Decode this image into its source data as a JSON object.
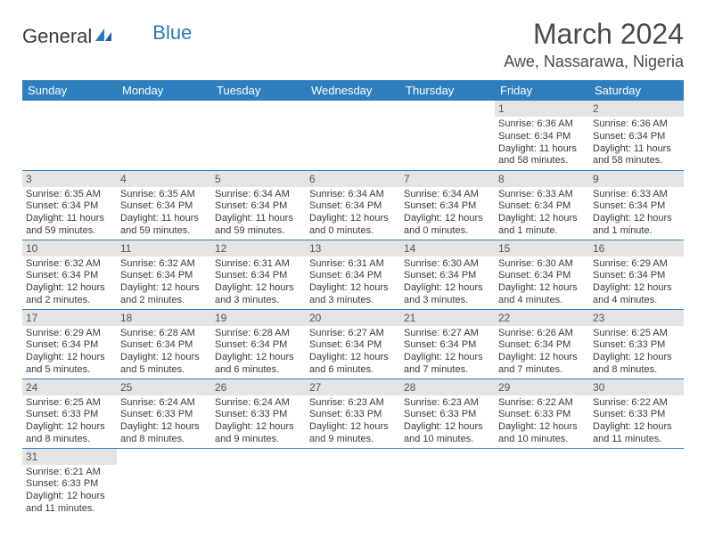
{
  "logo": {
    "part1": "General",
    "part2": "Blue"
  },
  "title": "March 2024",
  "location": "Awe, Nassarawa, Nigeria",
  "colors": {
    "header_bg": "#2f7fbf",
    "header_fg": "#ffffff",
    "daynum_bg": "#e4e4e4",
    "border": "#2f7fbf",
    "text": "#3a3a3a"
  },
  "weekdays": [
    "Sunday",
    "Monday",
    "Tuesday",
    "Wednesday",
    "Thursday",
    "Friday",
    "Saturday"
  ],
  "weeks": [
    [
      {
        "n": "",
        "lines": []
      },
      {
        "n": "",
        "lines": []
      },
      {
        "n": "",
        "lines": []
      },
      {
        "n": "",
        "lines": []
      },
      {
        "n": "",
        "lines": []
      },
      {
        "n": "1",
        "lines": [
          "Sunrise: 6:36 AM",
          "Sunset: 6:34 PM",
          "Daylight: 11 hours",
          "and 58 minutes."
        ]
      },
      {
        "n": "2",
        "lines": [
          "Sunrise: 6:36 AM",
          "Sunset: 6:34 PM",
          "Daylight: 11 hours",
          "and 58 minutes."
        ]
      }
    ],
    [
      {
        "n": "3",
        "lines": [
          "Sunrise: 6:35 AM",
          "Sunset: 6:34 PM",
          "Daylight: 11 hours",
          "and 59 minutes."
        ]
      },
      {
        "n": "4",
        "lines": [
          "Sunrise: 6:35 AM",
          "Sunset: 6:34 PM",
          "Daylight: 11 hours",
          "and 59 minutes."
        ]
      },
      {
        "n": "5",
        "lines": [
          "Sunrise: 6:34 AM",
          "Sunset: 6:34 PM",
          "Daylight: 11 hours",
          "and 59 minutes."
        ]
      },
      {
        "n": "6",
        "lines": [
          "Sunrise: 6:34 AM",
          "Sunset: 6:34 PM",
          "Daylight: 12 hours",
          "and 0 minutes."
        ]
      },
      {
        "n": "7",
        "lines": [
          "Sunrise: 6:34 AM",
          "Sunset: 6:34 PM",
          "Daylight: 12 hours",
          "and 0 minutes."
        ]
      },
      {
        "n": "8",
        "lines": [
          "Sunrise: 6:33 AM",
          "Sunset: 6:34 PM",
          "Daylight: 12 hours",
          "and 1 minute."
        ]
      },
      {
        "n": "9",
        "lines": [
          "Sunrise: 6:33 AM",
          "Sunset: 6:34 PM",
          "Daylight: 12 hours",
          "and 1 minute."
        ]
      }
    ],
    [
      {
        "n": "10",
        "lines": [
          "Sunrise: 6:32 AM",
          "Sunset: 6:34 PM",
          "Daylight: 12 hours",
          "and 2 minutes."
        ]
      },
      {
        "n": "11",
        "lines": [
          "Sunrise: 6:32 AM",
          "Sunset: 6:34 PM",
          "Daylight: 12 hours",
          "and 2 minutes."
        ]
      },
      {
        "n": "12",
        "lines": [
          "Sunrise: 6:31 AM",
          "Sunset: 6:34 PM",
          "Daylight: 12 hours",
          "and 3 minutes."
        ]
      },
      {
        "n": "13",
        "lines": [
          "Sunrise: 6:31 AM",
          "Sunset: 6:34 PM",
          "Daylight: 12 hours",
          "and 3 minutes."
        ]
      },
      {
        "n": "14",
        "lines": [
          "Sunrise: 6:30 AM",
          "Sunset: 6:34 PM",
          "Daylight: 12 hours",
          "and 3 minutes."
        ]
      },
      {
        "n": "15",
        "lines": [
          "Sunrise: 6:30 AM",
          "Sunset: 6:34 PM",
          "Daylight: 12 hours",
          "and 4 minutes."
        ]
      },
      {
        "n": "16",
        "lines": [
          "Sunrise: 6:29 AM",
          "Sunset: 6:34 PM",
          "Daylight: 12 hours",
          "and 4 minutes."
        ]
      }
    ],
    [
      {
        "n": "17",
        "lines": [
          "Sunrise: 6:29 AM",
          "Sunset: 6:34 PM",
          "Daylight: 12 hours",
          "and 5 minutes."
        ]
      },
      {
        "n": "18",
        "lines": [
          "Sunrise: 6:28 AM",
          "Sunset: 6:34 PM",
          "Daylight: 12 hours",
          "and 5 minutes."
        ]
      },
      {
        "n": "19",
        "lines": [
          "Sunrise: 6:28 AM",
          "Sunset: 6:34 PM",
          "Daylight: 12 hours",
          "and 6 minutes."
        ]
      },
      {
        "n": "20",
        "lines": [
          "Sunrise: 6:27 AM",
          "Sunset: 6:34 PM",
          "Daylight: 12 hours",
          "and 6 minutes."
        ]
      },
      {
        "n": "21",
        "lines": [
          "Sunrise: 6:27 AM",
          "Sunset: 6:34 PM",
          "Daylight: 12 hours",
          "and 7 minutes."
        ]
      },
      {
        "n": "22",
        "lines": [
          "Sunrise: 6:26 AM",
          "Sunset: 6:34 PM",
          "Daylight: 12 hours",
          "and 7 minutes."
        ]
      },
      {
        "n": "23",
        "lines": [
          "Sunrise: 6:25 AM",
          "Sunset: 6:33 PM",
          "Daylight: 12 hours",
          "and 8 minutes."
        ]
      }
    ],
    [
      {
        "n": "24",
        "lines": [
          "Sunrise: 6:25 AM",
          "Sunset: 6:33 PM",
          "Daylight: 12 hours",
          "and 8 minutes."
        ]
      },
      {
        "n": "25",
        "lines": [
          "Sunrise: 6:24 AM",
          "Sunset: 6:33 PM",
          "Daylight: 12 hours",
          "and 8 minutes."
        ]
      },
      {
        "n": "26",
        "lines": [
          "Sunrise: 6:24 AM",
          "Sunset: 6:33 PM",
          "Daylight: 12 hours",
          "and 9 minutes."
        ]
      },
      {
        "n": "27",
        "lines": [
          "Sunrise: 6:23 AM",
          "Sunset: 6:33 PM",
          "Daylight: 12 hours",
          "and 9 minutes."
        ]
      },
      {
        "n": "28",
        "lines": [
          "Sunrise: 6:23 AM",
          "Sunset: 6:33 PM",
          "Daylight: 12 hours",
          "and 10 minutes."
        ]
      },
      {
        "n": "29",
        "lines": [
          "Sunrise: 6:22 AM",
          "Sunset: 6:33 PM",
          "Daylight: 12 hours",
          "and 10 minutes."
        ]
      },
      {
        "n": "30",
        "lines": [
          "Sunrise: 6:22 AM",
          "Sunset: 6:33 PM",
          "Daylight: 12 hours",
          "and 11 minutes."
        ]
      }
    ],
    [
      {
        "n": "31",
        "lines": [
          "Sunrise: 6:21 AM",
          "Sunset: 6:33 PM",
          "Daylight: 12 hours",
          "and 11 minutes."
        ]
      },
      {
        "n": "",
        "lines": []
      },
      {
        "n": "",
        "lines": []
      },
      {
        "n": "",
        "lines": []
      },
      {
        "n": "",
        "lines": []
      },
      {
        "n": "",
        "lines": []
      },
      {
        "n": "",
        "lines": []
      }
    ]
  ]
}
